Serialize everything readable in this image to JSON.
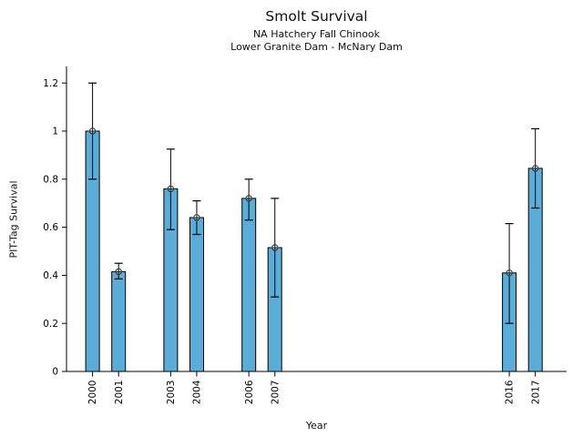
{
  "figure": {
    "title": "Smolt Survival",
    "subtitle1": "NA Hatchery Fall Chinook",
    "subtitle2": "Lower Granite Dam - McNary Dam"
  },
  "chart_data": {
    "type": "bar",
    "title": "Smolt Survival",
    "subtitle1": "NA Hatchery Fall Chinook",
    "subtitle2": "Lower Granite Dam - McNary Dam",
    "xlabel": "Year",
    "ylabel": "PIT-Tag Survival",
    "categories": [
      "2000",
      "2001",
      "2003",
      "2004",
      "2006",
      "2007",
      "2016",
      "2017"
    ],
    "values": [
      1.0,
      0.415,
      0.76,
      0.64,
      0.72,
      0.515,
      0.41,
      0.845
    ],
    "error_low": [
      0.8,
      0.385,
      0.59,
      0.57,
      0.63,
      0.31,
      0.2,
      0.68
    ],
    "error_high": [
      1.2,
      0.45,
      0.925,
      0.71,
      0.8,
      0.72,
      0.615,
      1.01
    ],
    "y_ticks": [
      0,
      0.2,
      0.4,
      0.6,
      0.8,
      1,
      1.2
    ],
    "y_tick_labels": [
      "0",
      "0.2",
      "0.4",
      "0.6",
      "0.8",
      "1",
      "1.2"
    ],
    "ylim": [
      0,
      1.269
    ],
    "xlim": [
      1999.0,
      2018.2
    ],
    "x_tick_rotation": -90,
    "grid": false,
    "legend": "none",
    "bar_color": "#5BACD6",
    "bar_edge_color": "#000000",
    "errorbar_color": "#000000",
    "marker": "open-circle-plus",
    "marker_color": "#333333",
    "axis_color": "#000000"
  }
}
